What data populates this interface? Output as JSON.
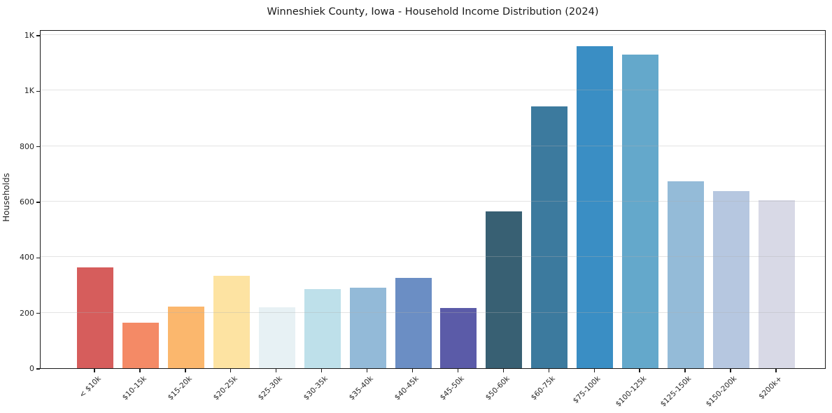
{
  "title": "Winneshiek County, Iowa - Household Income Distribution (2024)",
  "chart_data": {
    "type": "bar",
    "title": "Winneshiek County, Iowa - Household Income Distribution (2024)",
    "xlabel": "",
    "ylabel": "Households",
    "categories": [
      "< $10k",
      "$10-15k",
      "$15-20k",
      "$20-25k",
      "$25-30k",
      "$30-35k",
      "$35-40k",
      "$40-45k",
      "$45-50k",
      "$50-60k",
      "$60-75k",
      "$75-100k",
      "$100-125k",
      "$125-150k",
      "$150-200k",
      "$200k+"
    ],
    "values": [
      362,
      164,
      221,
      334,
      219,
      284,
      289,
      325,
      216,
      564,
      942,
      1159,
      1129,
      673,
      638,
      605
    ],
    "bar_colors": [
      "#d65d5c",
      "#f48a66",
      "#fbb76d",
      "#fde3a2",
      "#e7f1f4",
      "#bee0ea",
      "#93bad8",
      "#6b8ec4",
      "#5b5ba8",
      "#386073",
      "#3c7a9e",
      "#3a8ec4",
      "#64a8cb",
      "#94bbd8",
      "#b6c7e0",
      "#d8d9e6"
    ],
    "ylim": [
      0,
      1220
    ],
    "yticks": [
      {
        "value": 0,
        "label": "0"
      },
      {
        "value": 200,
        "label": "200"
      },
      {
        "value": 400,
        "label": "400"
      },
      {
        "value": 600,
        "label": "600"
      },
      {
        "value": 800,
        "label": "800"
      },
      {
        "value": 1000,
        "label": "1K"
      },
      {
        "value": 1200,
        "label": "1K"
      }
    ],
    "grid": "horizontal-light",
    "legend": "none",
    "x_tick_rotation_deg": 45
  },
  "colors": {
    "background": "#ffffff",
    "spine": "#1a1a1a",
    "grid": "#b0b0b0",
    "text": "#262626"
  }
}
